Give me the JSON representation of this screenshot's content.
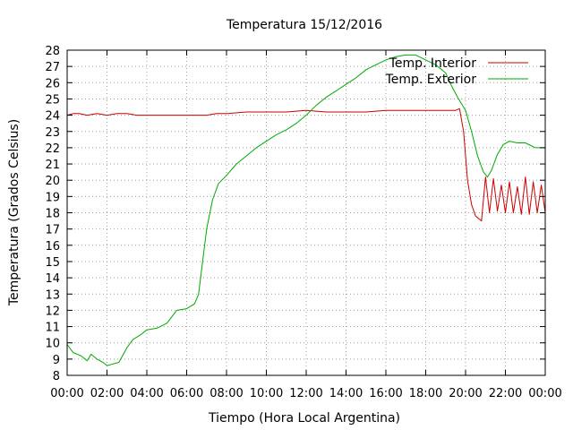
{
  "chart_data": {
    "type": "line",
    "title": "Temperatura 15/12/2016",
    "xlabel": "Tiempo (Hora Local Argentina)",
    "ylabel": "Temperatura (Grados Celsius)",
    "xlim": [
      0,
      24
    ],
    "ylim": [
      8,
      28
    ],
    "x_tick_labels": [
      "00:00",
      "02:00",
      "04:00",
      "06:00",
      "08:00",
      "10:00",
      "12:00",
      "14:00",
      "16:00",
      "18:00",
      "20:00",
      "22:00",
      "00:00"
    ],
    "y_ticks": [
      8,
      9,
      10,
      11,
      12,
      13,
      14,
      15,
      16,
      17,
      18,
      19,
      20,
      21,
      22,
      23,
      24,
      25,
      26,
      27,
      28
    ],
    "grid": true,
    "legend_position": "top-right",
    "series": [
      {
        "name": "Temp. Interior",
        "color": "#cc0000",
        "x": [
          0,
          0.3,
          0.6,
          1,
          1.5,
          2,
          2.5,
          3,
          3.5,
          4,
          5,
          6,
          7,
          7.5,
          8,
          9,
          10,
          11,
          12,
          13,
          14,
          15,
          16,
          17,
          18,
          18.5,
          19,
          19.5,
          19.7,
          19.9,
          20.1,
          20.3,
          20.5,
          20.8,
          21,
          21.2,
          21.4,
          21.6,
          21.8,
          22,
          22.2,
          22.4,
          22.6,
          22.8,
          23,
          23.2,
          23.4,
          23.6,
          23.8,
          24
        ],
        "y": [
          24.0,
          24.1,
          24.1,
          24.0,
          24.1,
          24.0,
          24.1,
          24.1,
          24.0,
          24.0,
          24.0,
          24.0,
          24.0,
          24.1,
          24.1,
          24.2,
          24.2,
          24.2,
          24.3,
          24.2,
          24.2,
          24.2,
          24.3,
          24.3,
          24.3,
          24.3,
          24.3,
          24.3,
          24.4,
          23.0,
          20.0,
          18.5,
          17.8,
          17.5,
          20.2,
          18.0,
          20.1,
          18.1,
          19.7,
          18.0,
          19.9,
          18.0,
          19.6,
          17.9,
          20.2,
          17.9,
          19.9,
          18.0,
          19.7,
          18.0
        ]
      },
      {
        "name": "Temp. Exterior",
        "color": "#00aa00",
        "x": [
          0,
          0.3,
          0.7,
          1,
          1.2,
          1.5,
          1.8,
          2,
          2.3,
          2.6,
          3,
          3.3,
          3.7,
          4,
          4.5,
          5,
          5.5,
          6,
          6.4,
          6.6,
          6.8,
          7,
          7.3,
          7.6,
          8,
          8.5,
          9,
          9.5,
          10,
          10.5,
          11,
          11.5,
          12,
          12.5,
          13,
          13.5,
          14,
          14.5,
          15,
          15.5,
          16,
          16.5,
          17,
          17.5,
          18,
          18.5,
          19,
          19.3,
          19.6,
          20,
          20.3,
          20.6,
          20.9,
          21.1,
          21.3,
          21.6,
          21.9,
          22.2,
          22.6,
          23,
          23.5,
          24
        ],
        "y": [
          9.9,
          9.4,
          9.2,
          8.9,
          9.3,
          9.0,
          8.8,
          8.6,
          8.7,
          8.8,
          9.7,
          10.2,
          10.5,
          10.8,
          10.9,
          11.2,
          12.0,
          12.1,
          12.4,
          13.0,
          15.0,
          17.0,
          18.8,
          19.8,
          20.3,
          21.0,
          21.5,
          22.0,
          22.4,
          22.8,
          23.1,
          23.5,
          24.0,
          24.6,
          25.1,
          25.5,
          25.9,
          26.3,
          26.8,
          27.1,
          27.4,
          27.6,
          27.7,
          27.7,
          27.4,
          27.1,
          26.6,
          25.8,
          25.1,
          24.3,
          23.0,
          21.5,
          20.5,
          20.2,
          20.6,
          21.6,
          22.2,
          22.4,
          22.3,
          22.3,
          22.0,
          22.0
        ]
      }
    ]
  }
}
